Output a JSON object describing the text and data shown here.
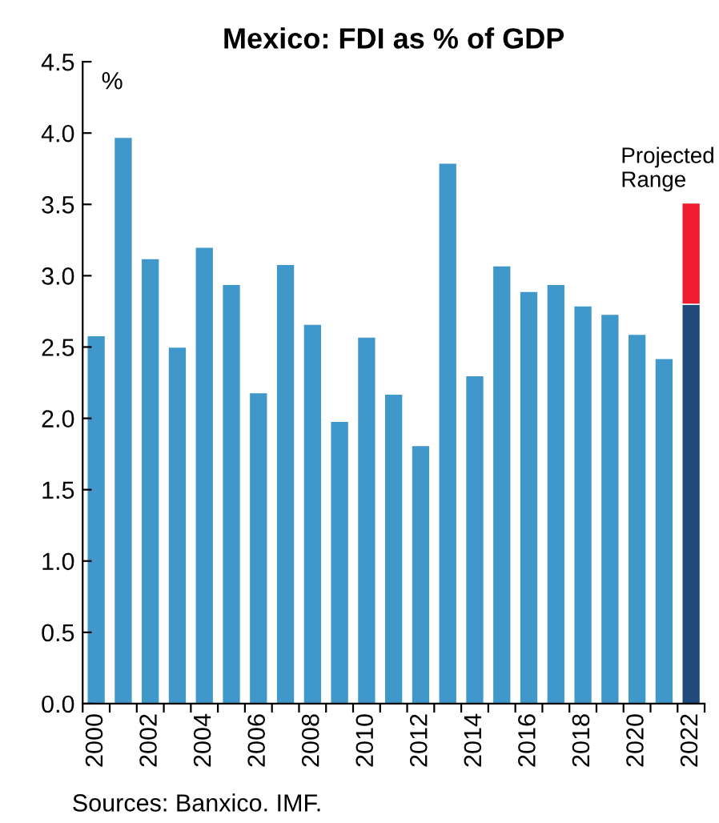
{
  "chart_data": {
    "type": "bar",
    "title": "Mexico: FDI as % of GDP",
    "ylabel": "%",
    "stacked": true,
    "categories": [
      "2000",
      null,
      "2002",
      null,
      "2004",
      null,
      "2006",
      null,
      "2008",
      null,
      "2010",
      null,
      "2012",
      null,
      "2014",
      null,
      "2016",
      null,
      "2018",
      null,
      "2020",
      null,
      "2022"
    ],
    "series": [
      {
        "colors": [
          "#3f97ca",
          "#3f97ca",
          "#3f97ca",
          "#3f97ca",
          "#3f97ca",
          "#3f97ca",
          "#3f97ca",
          "#3f97ca",
          "#3f97ca",
          "#3f97ca",
          "#3f97ca",
          "#3f97ca",
          "#3f97ca",
          "#3f97ca",
          "#3f97ca",
          "#3f97ca",
          "#3f97ca",
          "#3f97ca",
          "#3f97ca",
          "#3f97ca",
          "#3f97ca",
          "#3f97ca",
          "#214a7c"
        ],
        "values": [
          2.58,
          3.97,
          3.12,
          2.5,
          3.2,
          2.94,
          2.18,
          3.08,
          2.66,
          1.98,
          2.57,
          2.17,
          1.81,
          3.79,
          2.3,
          3.07,
          2.89,
          2.94,
          2.79,
          2.73,
          2.59,
          2.42,
          2.8
        ]
      },
      {
        "name": "Projected Range",
        "color": "#ee1c2e",
        "values": [
          null,
          null,
          null,
          null,
          null,
          null,
          null,
          null,
          null,
          null,
          null,
          null,
          null,
          null,
          null,
          null,
          null,
          null,
          null,
          null,
          null,
          null,
          0.71
        ]
      }
    ],
    "ylim": [
      0,
      4.5
    ],
    "yticks": [
      {
        "value": 0,
        "label": "0.0"
      },
      {
        "value": 0.5,
        "label": "0.5"
      },
      {
        "value": 1,
        "label": "1.0"
      },
      {
        "value": 1.5,
        "label": "1.5"
      },
      {
        "value": 2,
        "label": "2.0"
      },
      {
        "value": 2.5,
        "label": "2.5"
      },
      {
        "value": 3,
        "label": "3.0"
      },
      {
        "value": 3.5,
        "label": "3.5"
      },
      {
        "value": 4,
        "label": "4.0"
      },
      {
        "value": 4.5,
        "label": "4.5"
      }
    ],
    "grid": false,
    "legend": false,
    "annotations": [
      "Sources: Banxico. IMF."
    ]
  }
}
